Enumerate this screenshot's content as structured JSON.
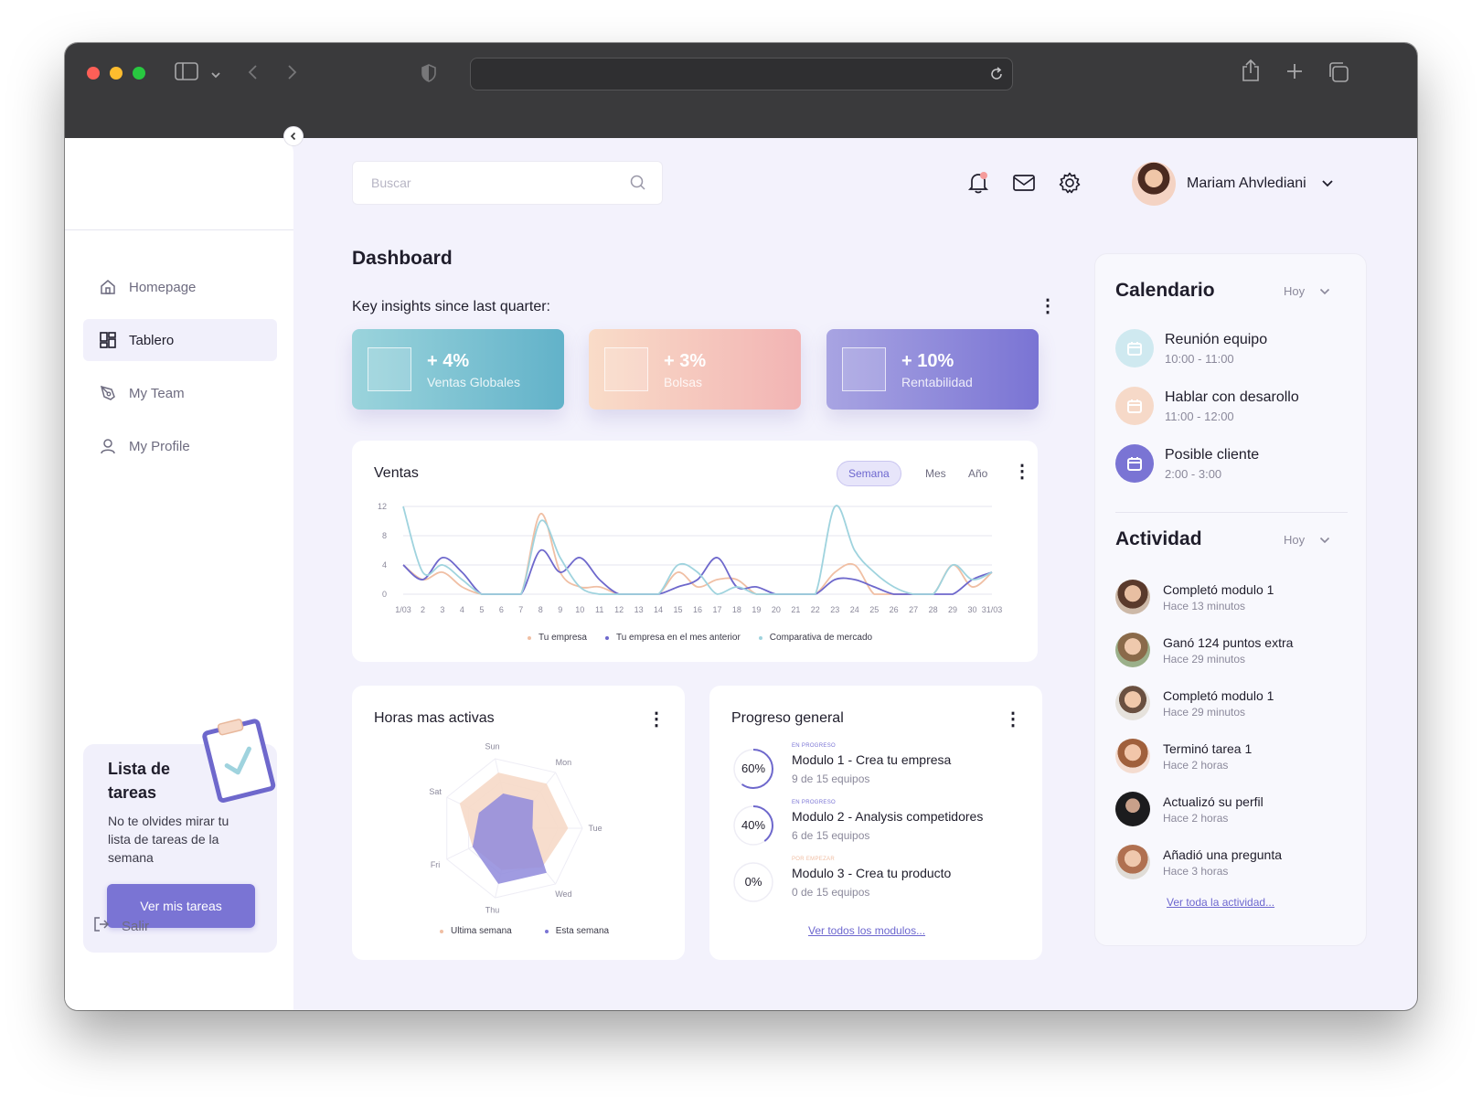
{
  "browser": {
    "url": ""
  },
  "search": {
    "placeholder": "Buscar"
  },
  "user": {
    "name": "Mariam Ahvlediani"
  },
  "sidebar": {
    "items": [
      {
        "label": "Homepage"
      },
      {
        "label": "Tablero"
      },
      {
        "label": "My Team"
      },
      {
        "label": "My Profile"
      }
    ],
    "task_card": {
      "title": "Lista de tareas",
      "text": "No te olvides mirar tu lista de tareas de la semana",
      "button": "Ver mis tareas"
    },
    "logout": "Salir"
  },
  "dashboard": {
    "title": "Dashboard",
    "insights_title": "Key insights since last quarter:",
    "kpis": [
      {
        "value": "+ 4%",
        "label": "Ventas Globales"
      },
      {
        "value": "+ 3%",
        "label": "Bolsas"
      },
      {
        "value": "+ 10%",
        "label": "Rentabilidad"
      }
    ]
  },
  "ventas": {
    "title": "Ventas",
    "tabs": [
      "Semana",
      "Mes",
      "Año"
    ],
    "active_tab": "Semana"
  },
  "horas": {
    "title": "Horas mas activas"
  },
  "progreso": {
    "title": "Progreso general",
    "modules": [
      {
        "status": "EN PROGRESO",
        "name": "Modulo 1 - Crea tu empresa",
        "sub": "9 de 15 equipos",
        "pct_label": "60%",
        "pct": 60
      },
      {
        "status": "EN PROGRESO",
        "name": "Modulo 2 - Analysis competidores",
        "sub": "6 de 15 equipos",
        "pct_label": "40%",
        "pct": 40
      },
      {
        "status": "POR EMPEZAR",
        "name": "Modulo 3 - Crea tu producto",
        "sub": "0 de 15 equipos",
        "pct_label": "0%",
        "pct": 0
      }
    ],
    "link": "Ver todos los modulos..."
  },
  "calendario": {
    "title": "Calendario",
    "filter": "Hoy",
    "events": [
      {
        "name": "Reunión equipo",
        "time": "10:00 - 11:00",
        "color": "#cfe9f0"
      },
      {
        "name": "Hablar con desarollo",
        "time": "11:00 - 12:00",
        "color": "#f6d9c8"
      },
      {
        "name": "Posible cliente",
        "time": "2:00 - 3:00",
        "color": "#7a74d4"
      }
    ]
  },
  "actividad": {
    "title": "Actividad",
    "filter": "Hoy",
    "items": [
      {
        "name": "Completó modulo 1",
        "time": "Hace 13 minutos"
      },
      {
        "name": "Ganó 124 puntos extra",
        "time": "Hace 29 minutos"
      },
      {
        "name": "Completó modulo 1",
        "time": "Hace 29 minutos"
      },
      {
        "name": "Terminó tarea 1",
        "time": "Hace 2 horas"
      },
      {
        "name": "Actualizó su perfil",
        "time": "Hace 2 horas"
      },
      {
        "name": "Añadió una pregunta",
        "time": "Hace 3 horas"
      }
    ],
    "link": "Ver toda la actividad..."
  },
  "chart_data": [
    {
      "type": "line",
      "x": [
        "1/03",
        "2",
        "3",
        "4",
        "5",
        "6",
        "7",
        "8",
        "9",
        "10",
        "11",
        "12",
        "13",
        "14",
        "15",
        "16",
        "17",
        "18",
        "19",
        "20",
        "21",
        "22",
        "23",
        "24",
        "25",
        "26",
        "27",
        "28",
        "29",
        "30",
        "31/03"
      ],
      "ylim": [
        0,
        12
      ],
      "yticks": [
        0,
        4,
        8,
        12
      ],
      "grid": true,
      "legend_position": "bottom",
      "series": [
        {
          "name": "Tu empresa",
          "color": "#f0bfa4",
          "values": [
            4,
            2,
            3,
            1,
            0,
            0,
            0,
            11,
            3,
            1,
            1,
            0,
            0,
            0,
            3,
            1,
            2,
            2,
            0,
            0,
            0,
            0,
            3,
            4,
            0,
            0,
            0,
            0,
            4,
            1,
            3
          ]
        },
        {
          "name": "Tu empresa en el mes anterior",
          "color": "#6e68cc",
          "values": [
            4,
            2,
            5,
            3,
            0,
            0,
            0,
            6,
            3,
            5,
            2,
            0,
            0,
            0,
            1,
            2,
            5,
            1,
            1,
            0,
            0,
            0,
            2,
            2,
            1,
            0,
            0,
            0,
            0,
            2,
            3
          ]
        },
        {
          "name": "Comparativa de mercado",
          "color": "#9fd3de",
          "values": [
            12,
            3,
            4,
            2,
            0,
            0,
            0,
            10,
            5,
            1,
            0,
            0,
            0,
            0,
            4,
            3,
            0,
            1,
            0,
            0,
            0,
            0,
            12,
            6,
            3,
            1,
            0,
            0,
            4,
            2,
            3
          ]
        }
      ]
    },
    {
      "type": "radar",
      "axes": [
        "Sun",
        "Mon",
        "Tue",
        "Wed",
        "Thu",
        "Fri",
        "Sat"
      ],
      "max": 10,
      "legend_position": "bottom",
      "series": [
        {
          "name": "Ultima semana",
          "color": "#f0bfa4",
          "values": [
            8,
            8,
            8,
            7,
            6,
            6,
            8
          ]
        },
        {
          "name": "Esta semana",
          "color": "#7a74d4",
          "values": [
            5,
            5,
            3,
            8,
            8,
            6,
            5
          ]
        }
      ]
    }
  ]
}
